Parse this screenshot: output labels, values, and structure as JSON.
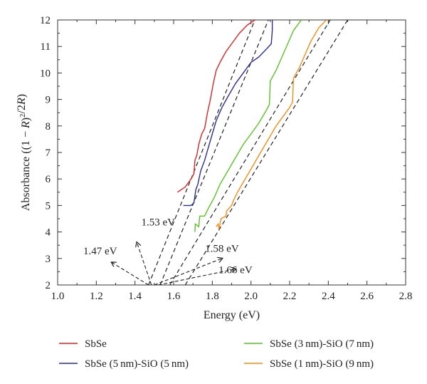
{
  "chart_data": {
    "type": "line",
    "xlabel": "Energy (eV)",
    "ylabel_parts": [
      "Absorbance ((1 − ",
      "R",
      ")",
      "2",
      "/2",
      "R",
      ")"
    ],
    "xlim": [
      1.0,
      2.8
    ],
    "ylim": [
      2,
      12
    ],
    "xticks": [
      "1.0",
      "1.2",
      "1.4",
      "1.6",
      "1.8",
      "2.0",
      "2.2",
      "2.4",
      "2.6",
      "2.8"
    ],
    "yticks": [
      "2",
      "3",
      "4",
      "5",
      "6",
      "7",
      "8",
      "9",
      "10",
      "11",
      "12"
    ],
    "grid": false,
    "legend": "bottom",
    "series": [
      {
        "name": "SbSe",
        "color": "#d62728",
        "points": [
          [
            1.62,
            5.5
          ],
          [
            1.66,
            5.7
          ],
          [
            1.69,
            6.0
          ],
          [
            1.705,
            6.2
          ],
          [
            1.71,
            6.7
          ],
          [
            1.72,
            6.9
          ],
          [
            1.73,
            7.3
          ],
          [
            1.745,
            7.7
          ],
          [
            1.76,
            7.9
          ],
          [
            1.775,
            8.5
          ],
          [
            1.79,
            9.0
          ],
          [
            1.805,
            9.6
          ],
          [
            1.82,
            10.1
          ],
          [
            1.84,
            10.4
          ],
          [
            1.87,
            10.8
          ],
          [
            1.9,
            11.1
          ],
          [
            1.94,
            11.5
          ],
          [
            1.98,
            11.8
          ],
          [
            2.02,
            12.0
          ]
        ]
      },
      {
        "name": "SbSe (5 nm)-SiO (5 nm)",
        "color": "#2b2f8c",
        "points": [
          [
            1.65,
            5.0
          ],
          [
            1.69,
            5.0
          ],
          [
            1.705,
            5.1
          ],
          [
            1.715,
            5.6
          ],
          [
            1.725,
            5.8
          ],
          [
            1.74,
            6.3
          ],
          [
            1.76,
            6.7
          ],
          [
            1.78,
            7.2
          ],
          [
            1.8,
            7.7
          ],
          [
            1.82,
            8.2
          ],
          [
            1.85,
            8.7
          ],
          [
            1.88,
            9.1
          ],
          [
            1.92,
            9.6
          ],
          [
            1.96,
            10.0
          ],
          [
            2.0,
            10.4
          ],
          [
            2.04,
            10.6
          ],
          [
            2.08,
            10.9
          ],
          [
            2.105,
            11.1
          ],
          [
            2.11,
            11.6
          ],
          [
            2.11,
            12.0
          ]
        ]
      },
      {
        "name": "SbSe (3 nm)-SiO (7 nm)",
        "color": "#5fbf2a",
        "points": [
          [
            1.71,
            4.0
          ],
          [
            1.712,
            4.3
          ],
          [
            1.73,
            4.2
          ],
          [
            1.735,
            4.6
          ],
          [
            1.76,
            4.6
          ],
          [
            1.78,
            4.9
          ],
          [
            1.81,
            5.3
          ],
          [
            1.84,
            5.8
          ],
          [
            1.88,
            6.3
          ],
          [
            1.92,
            6.8
          ],
          [
            1.96,
            7.3
          ],
          [
            2.0,
            7.7
          ],
          [
            2.04,
            8.1
          ],
          [
            2.08,
            8.6
          ],
          [
            2.095,
            8.8
          ],
          [
            2.1,
            9.7
          ],
          [
            2.13,
            10.1
          ],
          [
            2.16,
            10.6
          ],
          [
            2.19,
            11.1
          ],
          [
            2.22,
            11.6
          ],
          [
            2.26,
            12.0
          ]
        ]
      },
      {
        "name": "SbSe (1 nm)-SiO (9 nm)",
        "color": "#f28c1c",
        "points": [
          [
            1.82,
            4.2
          ],
          [
            1.83,
            4.3
          ],
          [
            1.835,
            4.1
          ],
          [
            1.845,
            4.5
          ],
          [
            1.87,
            4.6
          ],
          [
            1.875,
            4.8
          ],
          [
            1.9,
            5.0
          ],
          [
            1.91,
            5.2
          ],
          [
            1.93,
            5.5
          ],
          [
            1.97,
            6.0
          ],
          [
            2.01,
            6.5
          ],
          [
            2.05,
            7.0
          ],
          [
            2.09,
            7.5
          ],
          [
            2.13,
            8.0
          ],
          [
            2.17,
            8.4
          ],
          [
            2.2,
            8.7
          ],
          [
            2.215,
            8.9
          ],
          [
            2.22,
            9.8
          ],
          [
            2.25,
            10.2
          ],
          [
            2.28,
            10.7
          ],
          [
            2.31,
            11.2
          ],
          [
            2.35,
            11.7
          ],
          [
            2.39,
            12.0
          ]
        ]
      }
    ],
    "fit_lines": [
      {
        "from": [
          1.47,
          2
        ],
        "to": [
          2.02,
          12
        ]
      },
      {
        "from": [
          1.53,
          2
        ],
        "to": [
          2.09,
          12
        ]
      },
      {
        "from": [
          1.58,
          2
        ],
        "to": [
          2.41,
          12
        ]
      },
      {
        "from": [
          1.66,
          2
        ],
        "to": [
          2.5,
          12
        ]
      }
    ],
    "annotations": [
      {
        "label": "1.53 eV",
        "text_at": [
          1.52,
          4.25
        ],
        "arrow_from": [
          1.485,
          2.0
        ],
        "arrow_to": [
          1.41,
          3.6
        ]
      },
      {
        "label": "1.47 eV",
        "text_at": [
          1.22,
          3.15
        ],
        "arrow_from": [
          1.47,
          2.0
        ],
        "arrow_to": [
          1.28,
          2.85
        ]
      },
      {
        "label": "1.58 eV",
        "text_at": [
          1.85,
          3.25
        ],
        "arrow_from": [
          1.5,
          2.0
        ],
        "arrow_to": [
          1.85,
          3.0
        ]
      },
      {
        "label": "1.66 eV",
        "text_at": [
          1.92,
          2.45
        ],
        "arrow_from": [
          1.52,
          2.0
        ],
        "arrow_to": [
          1.92,
          2.6
        ]
      }
    ]
  }
}
